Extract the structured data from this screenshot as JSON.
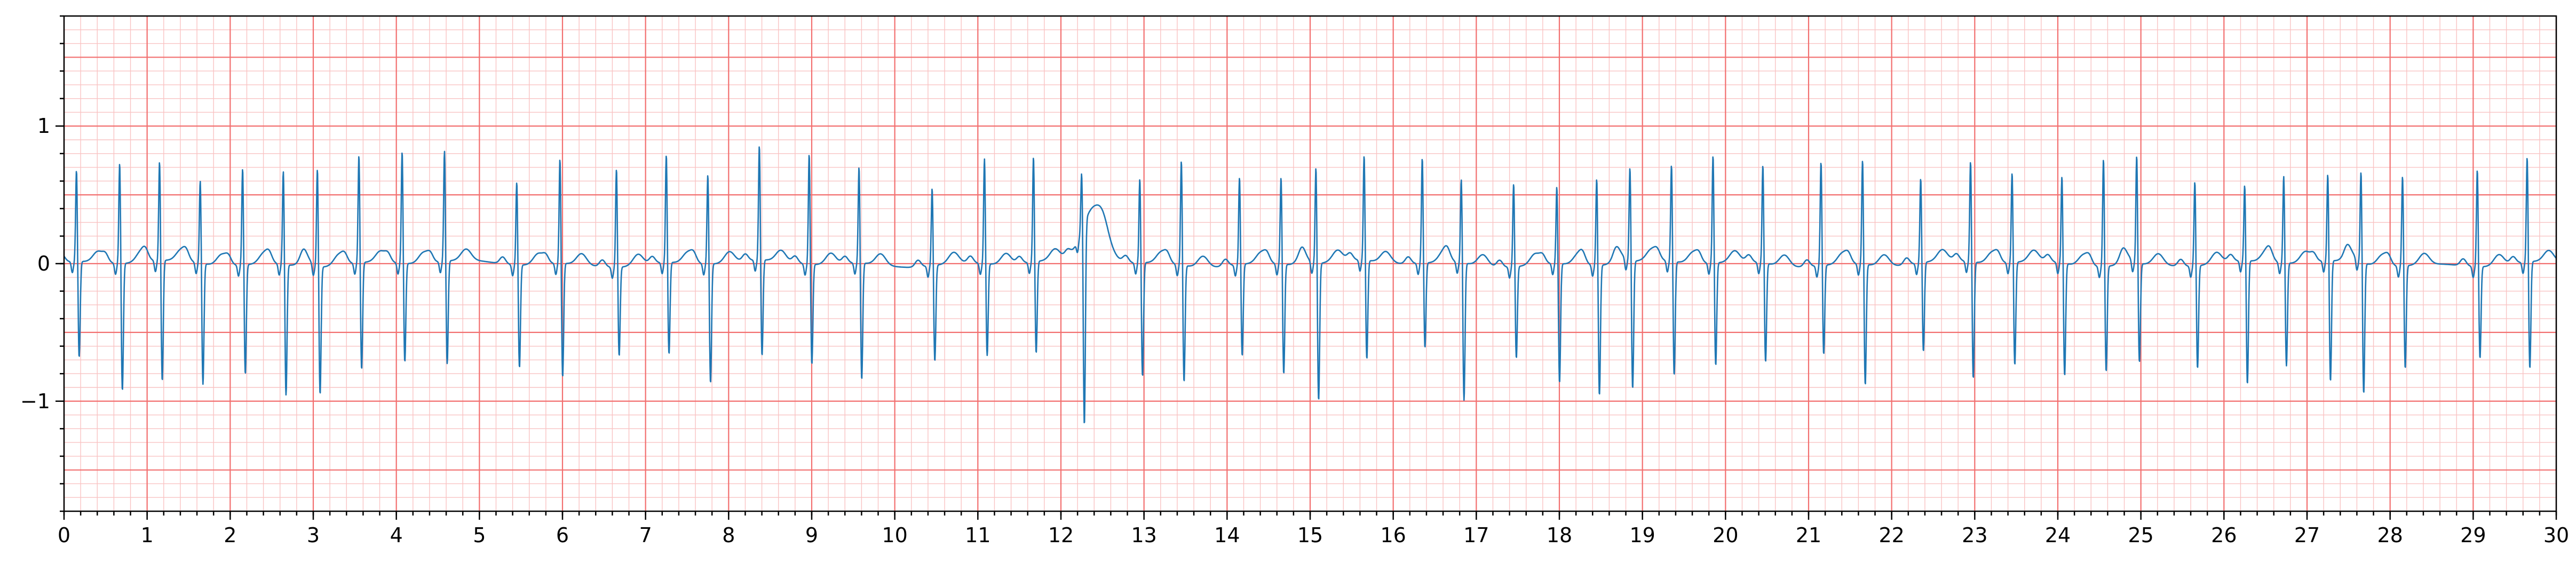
{
  "chart_data": {
    "type": "line",
    "title": "",
    "xlabel": "",
    "ylabel": "",
    "xlim": [
      0,
      30
    ],
    "ylim": [
      -1.8,
      1.8
    ],
    "xticks": [
      0,
      1,
      2,
      3,
      4,
      5,
      6,
      7,
      8,
      9,
      10,
      11,
      12,
      13,
      14,
      15,
      16,
      17,
      18,
      19,
      20,
      21,
      22,
      23,
      24,
      25,
      26,
      27,
      28,
      29,
      30
    ],
    "yticks": [
      -1,
      0,
      1
    ],
    "ytick_labels": [
      "−1",
      "0",
      "1"
    ],
    "grid": {
      "major_x_step": 1,
      "minor_x_step": 0.2,
      "major_y_step": 0.5,
      "minor_y_step": 0.1,
      "major_color": "#f26f6f",
      "minor_color": "#f9c3c3"
    },
    "line_color": "#1f77b4",
    "beats": [
      {
        "t": 0.15,
        "r": 0.68,
        "s": -0.7
      },
      {
        "t": 0.67,
        "r": 0.75,
        "s": -0.93
      },
      {
        "t": 1.15,
        "r": 0.74,
        "s": -0.88
      },
      {
        "t": 1.64,
        "r": 0.62,
        "s": -0.88
      },
      {
        "t": 2.15,
        "r": 0.72,
        "s": -0.8
      },
      {
        "t": 2.64,
        "r": 0.7,
        "s": -0.95
      },
      {
        "t": 3.05,
        "r": 0.73,
        "s": -0.93
      },
      {
        "t": 3.55,
        "r": 0.8,
        "s": -0.78
      },
      {
        "t": 4.07,
        "r": 0.83,
        "s": -0.72
      },
      {
        "t": 4.58,
        "r": 0.82,
        "s": -0.75
      },
      {
        "t": 5.45,
        "r": 0.62,
        "s": -0.75
      },
      {
        "t": 5.97,
        "r": 0.78,
        "s": -0.83
      },
      {
        "t": 6.65,
        "r": 0.73,
        "s": -0.65
      },
      {
        "t": 7.25,
        "r": 0.8,
        "s": -0.67
      },
      {
        "t": 7.75,
        "r": 0.67,
        "s": -0.87
      },
      {
        "t": 8.37,
        "r": 0.85,
        "s": -0.7
      },
      {
        "t": 8.97,
        "r": 0.82,
        "s": -0.73
      },
      {
        "t": 9.57,
        "r": 0.72,
        "s": -0.85
      },
      {
        "t": 10.45,
        "r": 0.58,
        "s": -0.7
      },
      {
        "t": 11.08,
        "r": 0.78,
        "s": -0.67
      },
      {
        "t": 11.67,
        "r": 0.78,
        "s": -0.67
      },
      {
        "t": 12.25,
        "r": 0.45,
        "s": -1.47
      },
      {
        "t": 12.95,
        "r": 0.63,
        "s": -0.83
      },
      {
        "t": 13.45,
        "r": 0.78,
        "s": -0.85
      },
      {
        "t": 14.15,
        "r": 0.65,
        "s": -0.67
      },
      {
        "t": 14.65,
        "r": 0.65,
        "s": -0.8
      },
      {
        "t": 15.07,
        "r": 0.72,
        "s": -1.0
      },
      {
        "t": 15.65,
        "r": 0.78,
        "s": -0.72
      },
      {
        "t": 16.35,
        "r": 0.78,
        "s": -0.62
      },
      {
        "t": 16.82,
        "r": 0.63,
        "s": -1.0
      },
      {
        "t": 17.45,
        "r": 0.62,
        "s": -0.67
      },
      {
        "t": 17.97,
        "r": 0.58,
        "s": -0.87
      },
      {
        "t": 18.45,
        "r": 0.65,
        "s": -0.95
      },
      {
        "t": 18.85,
        "r": 0.7,
        "s": -0.93
      },
      {
        "t": 19.35,
        "r": 0.72,
        "s": -0.83
      },
      {
        "t": 19.85,
        "r": 0.8,
        "s": -0.75
      },
      {
        "t": 20.45,
        "r": 0.73,
        "s": -0.72
      },
      {
        "t": 21.15,
        "r": 0.77,
        "s": -0.65
      },
      {
        "t": 21.65,
        "r": 0.78,
        "s": -0.88
      },
      {
        "t": 22.35,
        "r": 0.63,
        "s": -0.65
      },
      {
        "t": 22.95,
        "r": 0.75,
        "s": -0.85
      },
      {
        "t": 23.45,
        "r": 0.67,
        "s": -0.75
      },
      {
        "t": 24.05,
        "r": 0.65,
        "s": -0.82
      },
      {
        "t": 24.55,
        "r": 0.8,
        "s": -0.77
      },
      {
        "t": 24.95,
        "r": 0.8,
        "s": -0.72
      },
      {
        "t": 25.65,
        "r": 0.63,
        "s": -0.75
      },
      {
        "t": 26.25,
        "r": 0.57,
        "s": -0.9
      },
      {
        "t": 26.72,
        "r": 0.65,
        "s": -0.75
      },
      {
        "t": 27.25,
        "r": 0.65,
        "s": -0.88
      },
      {
        "t": 27.65,
        "r": 0.68,
        "s": -0.95
      },
      {
        "t": 28.15,
        "r": 0.67,
        "s": -0.75
      },
      {
        "t": 29.05,
        "r": 0.72,
        "s": -0.67
      },
      {
        "t": 29.65,
        "r": 0.78,
        "s": -0.78
      }
    ],
    "t_waves": [
      {
        "t": 12.4,
        "amp": 0.4,
        "w": 0.14
      }
    ]
  }
}
